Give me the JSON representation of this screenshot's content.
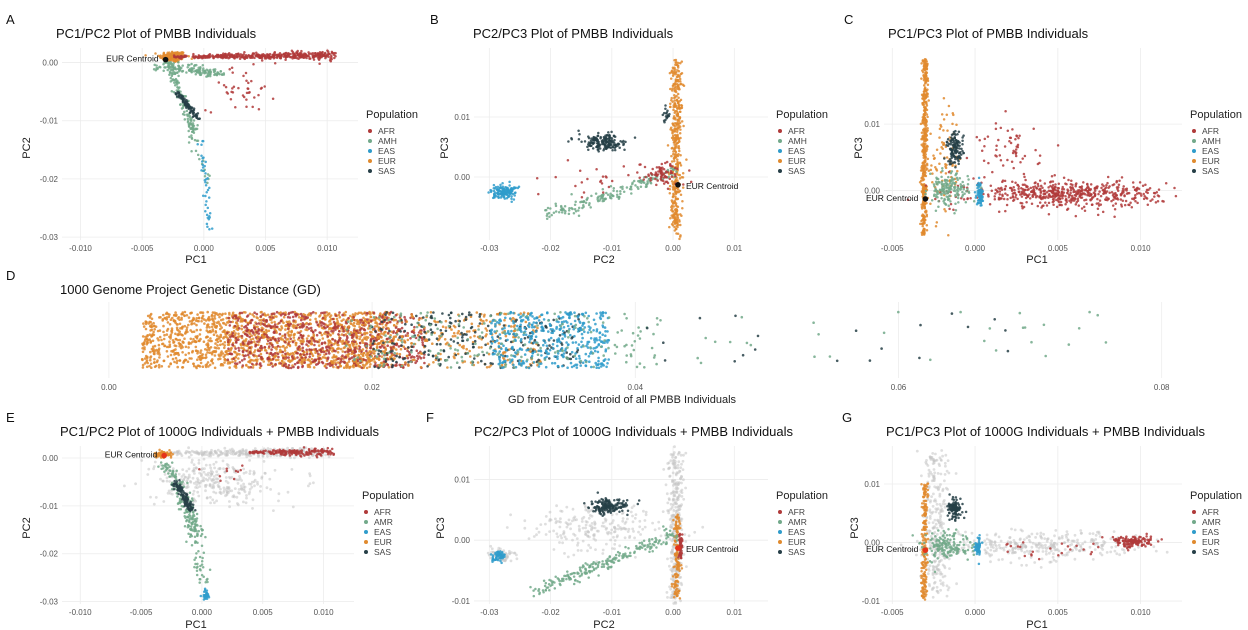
{
  "colors": {
    "AFR": "#b03a3a",
    "AMR": "#72a98a",
    "EAS": "#2f9ccb",
    "EUR": "#e08a2e",
    "SAS": "#263f47",
    "ref": "#c4c4c4",
    "centroid": "#111111",
    "centroid_combined": "#e5331b"
  },
  "chart_data": [
    {
      "id": "A",
      "letter": "A",
      "type": "scatter",
      "title": "PC1/PC2 Plot of PMBB Individuals",
      "xlabel": "PC1",
      "ylabel": "PC2",
      "xlim": [
        -0.0115,
        0.0125
      ],
      "ylim": [
        -0.0305,
        0.0025
      ],
      "xticks": [
        -0.01,
        -0.005,
        0.0,
        0.005,
        0.01
      ],
      "xtick_labels": [
        "-0.010",
        "-0.005",
        "0.000",
        "0.005",
        "0.010"
      ],
      "yticks": [
        0.0,
        -0.01,
        -0.02,
        -0.03
      ],
      "ytick_labels": [
        "0.00",
        "-0.01",
        "-0.02",
        "-0.03"
      ],
      "legend": {
        "title": "Population",
        "entries": [
          "AFR",
          "AMH",
          "EAS",
          "EUR",
          "SAS"
        ]
      },
      "centroid": {
        "label": "EUR Centroid",
        "x": -0.0031,
        "y": 0.0005
      },
      "reference": false,
      "clusters": [
        {
          "pop": "EUR",
          "n": 170,
          "shape": "ellipse",
          "cx": -0.0025,
          "cy": 0.001,
          "rx": 0.001,
          "ry": 0.0009
        },
        {
          "pop": "AFR",
          "n": 440,
          "shape": "wedge",
          "x0": -0.0025,
          "y0": 0.001,
          "x1": 0.0105,
          "y1": 0.0012,
          "w0": 0.0002,
          "w1": 0.0008
        },
        {
          "pop": "AFR",
          "n": 40,
          "shape": "ellipse",
          "cx": 0.003,
          "cy": -0.0045,
          "rx": 0.0025,
          "ry": 0.0035
        },
        {
          "pop": "AMR",
          "n": 150,
          "shape": "line",
          "x0": -0.0035,
          "y0": -0.0005,
          "x1": 0.0015,
          "y1": -0.002,
          "w": 0.0008
        },
        {
          "pop": "AMR",
          "n": 110,
          "shape": "line",
          "x0": -0.0028,
          "y0": 0.0,
          "x1": -0.0008,
          "y1": -0.012,
          "w": 0.0004
        },
        {
          "pop": "SAS",
          "n": 100,
          "shape": "line",
          "x0": -0.0022,
          "y0": -0.005,
          "x1": -0.0005,
          "y1": -0.0095,
          "w": 0.00028
        },
        {
          "pop": "AMR",
          "n": 30,
          "shape": "line",
          "x0": -0.001,
          "y0": -0.011,
          "x1": 0.0003,
          "y1": -0.021,
          "w": 0.0005
        },
        {
          "pop": "EAS",
          "n": 40,
          "shape": "line",
          "x0": -0.0002,
          "y0": -0.013,
          "x1": 0.0005,
          "y1": -0.029,
          "w": 0.00025
        }
      ]
    },
    {
      "id": "B",
      "letter": "B",
      "type": "scatter",
      "title": "PC2/PC3 Plot of PMBB Individuals",
      "xlabel": "PC2",
      "ylabel": "PC3",
      "xlim": [
        -0.0325,
        0.0155
      ],
      "ylim": [
        -0.0105,
        0.0215
      ],
      "xticks": [
        -0.03,
        -0.02,
        -0.01,
        0.0,
        0.01
      ],
      "xtick_labels": [
        "-0.03",
        "-0.02",
        "-0.01",
        "0.00",
        "0.01"
      ],
      "yticks": [
        0.01,
        0.0
      ],
      "ytick_labels": [
        "0.01",
        "0.00"
      ],
      "legend": {
        "title": "Population",
        "entries": [
          "AFR",
          "AMH",
          "EAS",
          "EUR",
          "SAS"
        ]
      },
      "centroid": {
        "label": "EUR Centroid",
        "x": 0.0008,
        "y": -0.0013
      },
      "reference": false,
      "clusters": [
        {
          "pop": "EUR",
          "n": 420,
          "shape": "line",
          "x0": 0.0004,
          "y0": -0.0098,
          "x1": 0.0006,
          "y1": 0.0195,
          "w": 0.0009
        },
        {
          "pop": "SAS",
          "n": 170,
          "shape": "ellipse",
          "cx": -0.0115,
          "cy": 0.0058,
          "rx": 0.0035,
          "ry": 0.0012
        },
        {
          "pop": "SAS",
          "n": 20,
          "shape": "ellipse",
          "cx": -0.001,
          "cy": 0.0105,
          "rx": 0.0005,
          "ry": 0.0013
        },
        {
          "pop": "EAS",
          "n": 150,
          "shape": "ellipse",
          "cx": -0.0275,
          "cy": -0.0025,
          "rx": 0.0018,
          "ry": 0.0011
        },
        {
          "pop": "AMR",
          "n": 170,
          "shape": "line",
          "x0": -0.021,
          "y0": -0.0065,
          "x1": 0.0005,
          "y1": 0.001,
          "w": 0.0011
        },
        {
          "pop": "AFR",
          "n": 80,
          "shape": "ellipse",
          "cx": -0.0015,
          "cy": 0.0005,
          "rx": 0.0032,
          "ry": 0.0018
        },
        {
          "pop": "AFR",
          "n": 25,
          "shape": "ellipse",
          "cx": -0.012,
          "cy": -0.0005,
          "rx": 0.006,
          "ry": 0.0025
        }
      ]
    },
    {
      "id": "C",
      "letter": "C",
      "type": "scatter",
      "title": "PC1/PC3 Plot of PMBB Individuals",
      "xlabel": "PC1",
      "ylabel": "PC3",
      "xlim": [
        -0.0055,
        0.0125
      ],
      "ylim": [
        -0.0075,
        0.0215
      ],
      "xticks": [
        -0.005,
        0.0,
        0.005,
        0.01
      ],
      "xtick_labels": [
        "-0.005",
        "0.000",
        "0.005",
        "0.010"
      ],
      "yticks": [
        0.01,
        0.0
      ],
      "ytick_labels": [
        "0.01",
        "0.00"
      ],
      "legend": {
        "title": "Population",
        "entries": [
          "AFR",
          "AMH",
          "EAS",
          "EUR",
          "SAS"
        ]
      },
      "centroid": {
        "label": "EUR Centroid",
        "x": -0.003,
        "y": -0.0013
      },
      "reference": false,
      "clusters": [
        {
          "pop": "EUR",
          "n": 420,
          "shape": "line",
          "x0": -0.0031,
          "y0": -0.0068,
          "x1": -0.003,
          "y1": 0.0198,
          "w": 0.00018
        },
        {
          "pop": "EUR",
          "n": 90,
          "shape": "ellipse",
          "cx": -0.0018,
          "cy": 0.004,
          "rx": 0.0009,
          "ry": 0.0075
        },
        {
          "pop": "AFR",
          "n": 560,
          "shape": "ellipse",
          "cx": 0.0055,
          "cy": -0.0005,
          "rx": 0.0052,
          "ry": 0.0018
        },
        {
          "pop": "AFR",
          "n": 60,
          "shape": "ellipse",
          "cx": 0.002,
          "cy": 0.006,
          "rx": 0.0018,
          "ry": 0.004
        },
        {
          "pop": "SAS",
          "n": 120,
          "shape": "ellipse",
          "cx": -0.0012,
          "cy": 0.0063,
          "rx": 0.00045,
          "ry": 0.0022
        },
        {
          "pop": "AMR",
          "n": 160,
          "shape": "ellipse",
          "cx": -0.0016,
          "cy": 0.0,
          "rx": 0.0011,
          "ry": 0.0022
        },
        {
          "pop": "EAS",
          "n": 70,
          "shape": "ellipse",
          "cx": 0.0003,
          "cy": -0.0005,
          "rx": 0.00018,
          "ry": 0.0016
        }
      ]
    },
    {
      "id": "D",
      "letter": "D",
      "type": "strip",
      "title": "1000 Genome Project Genetic Distance (GD)",
      "xlabel": "GD from EUR Centroid of all PMBB Individuals",
      "xlim": [
        -0.0025,
        0.082
      ],
      "xticks": [
        0.0,
        0.02,
        0.04,
        0.06,
        0.08
      ],
      "xtick_labels": [
        "0.00",
        "0.02",
        "0.04",
        "0.06",
        "0.08"
      ],
      "bands": [
        {
          "pop": "EUR",
          "n": 1500,
          "from": 0.0025,
          "to": 0.022
        },
        {
          "pop": "AFR",
          "n": 650,
          "from": 0.009,
          "to": 0.024
        },
        {
          "pop": "EUR",
          "n": 350,
          "from": 0.018,
          "to": 0.033
        },
        {
          "pop": "SAS",
          "n": 240,
          "from": 0.02,
          "to": 0.036
        },
        {
          "pop": "EAS",
          "n": 420,
          "from": 0.029,
          "to": 0.038
        },
        {
          "pop": "AMR",
          "n": 200,
          "from": 0.018,
          "to": 0.042
        },
        {
          "pop": "AMR",
          "n": 30,
          "from": 0.042,
          "to": 0.077
        },
        {
          "pop": "SAS",
          "n": 20,
          "from": 0.038,
          "to": 0.07
        }
      ]
    },
    {
      "id": "E",
      "letter": "E",
      "type": "scatter",
      "title": "PC1/PC2 Plot of 1000G Individuals + PMBB Individuals",
      "xlabel": "PC1",
      "ylabel": "PC2",
      "xlim": [
        -0.0115,
        0.0125
      ],
      "ylim": [
        -0.0305,
        0.0025
      ],
      "xticks": [
        -0.01,
        -0.005,
        0.0,
        0.005,
        0.01
      ],
      "xtick_labels": [
        "-0.010",
        "-0.005",
        "0.000",
        "0.005",
        "0.010"
      ],
      "yticks": [
        0.0,
        -0.01,
        -0.02,
        -0.03
      ],
      "ytick_labels": [
        "0.00",
        "-0.01",
        "-0.02",
        "-0.03"
      ],
      "legend": {
        "title": "Population",
        "entries": [
          "AFR",
          "AMR",
          "EAS",
          "EUR",
          "SAS"
        ]
      },
      "centroid": {
        "label": "EUR Centroid",
        "x": -0.0031,
        "y": 0.0005
      },
      "reference": true,
      "clusters": [
        {
          "pop": "ref",
          "n": 260,
          "shape": "wedge",
          "x0": -0.003,
          "y0": 0.001,
          "x1": 0.0102,
          "y1": 0.0012,
          "w0": 0.0004,
          "w1": 0.0012
        },
        {
          "pop": "ref",
          "n": 300,
          "shape": "ellipse",
          "cx": 0.001,
          "cy": -0.005,
          "rx": 0.0045,
          "ry": 0.0045
        },
        {
          "pop": "AFR",
          "n": 180,
          "shape": "wedge",
          "x0": 0.004,
          "y0": 0.0012,
          "x1": 0.0105,
          "y1": 0.0012,
          "w0": 0.0003,
          "w1": 0.0009
        },
        {
          "pop": "EUR",
          "n": 90,
          "shape": "ellipse",
          "cx": -0.0032,
          "cy": 0.0007,
          "rx": 0.0006,
          "ry": 0.0006
        },
        {
          "pop": "AMR",
          "n": 170,
          "shape": "line",
          "x0": -0.003,
          "y0": -0.0005,
          "x1": -0.0002,
          "y1": -0.016,
          "w": 0.0006
        },
        {
          "pop": "SAS",
          "n": 110,
          "shape": "line",
          "x0": -0.0022,
          "y0": -0.005,
          "x1": -0.0008,
          "y1": -0.011,
          "w": 0.00035
        },
        {
          "pop": "AMR",
          "n": 60,
          "shape": "line",
          "x0": -0.001,
          "y0": -0.012,
          "x1": 0.0002,
          "y1": -0.026,
          "w": 0.0007
        },
        {
          "pop": "EAS",
          "n": 30,
          "shape": "ellipse",
          "cx": 0.0003,
          "cy": -0.0285,
          "rx": 0.00025,
          "ry": 0.0012
        },
        {
          "pop": "AFR",
          "n": 10,
          "shape": "ellipse",
          "cx": 0.0025,
          "cy": -0.003,
          "rx": 0.002,
          "ry": 0.002
        }
      ]
    },
    {
      "id": "F",
      "letter": "F",
      "type": "scatter",
      "title": "PC2/PC3 Plot of 1000G Individuals + PMBB Individuals",
      "xlabel": "PC2",
      "ylabel": "PC3",
      "xlim": [
        -0.0325,
        0.0155
      ],
      "ylim": [
        -0.0105,
        0.0155
      ],
      "xticks": [
        -0.03,
        -0.02,
        -0.01,
        0.0,
        0.01
      ],
      "xtick_labels": [
        "-0.03",
        "-0.02",
        "-0.01",
        "0.00",
        "0.01"
      ],
      "yticks": [
        0.01,
        0.0,
        -0.01
      ],
      "ytick_labels": [
        "0.01",
        "0.00",
        "-0.01"
      ],
      "legend": {
        "title": "Population",
        "entries": [
          "AFR",
          "AMR",
          "EAS",
          "EUR",
          "SAS"
        ]
      },
      "centroid": {
        "label": "EUR Centroid",
        "x": 0.0008,
        "y": -0.0013
      },
      "reference": true,
      "clusters": [
        {
          "pop": "ref",
          "n": 320,
          "shape": "line",
          "x0": 0.0005,
          "y0": -0.01,
          "x1": 0.0005,
          "y1": 0.0145,
          "w": 0.0013
        },
        {
          "pop": "ref",
          "n": 220,
          "shape": "ellipse",
          "cx": -0.012,
          "cy": 0.002,
          "rx": 0.01,
          "ry": 0.0035
        },
        {
          "pop": "ref",
          "n": 60,
          "shape": "ellipse",
          "cx": -0.028,
          "cy": -0.0025,
          "rx": 0.002,
          "ry": 0.0012
        },
        {
          "pop": "EUR",
          "n": 130,
          "shape": "line",
          "x0": 0.0005,
          "y0": -0.0095,
          "x1": 0.0006,
          "y1": 0.004,
          "w": 0.0006
        },
        {
          "pop": "AFR",
          "n": 50,
          "shape": "line",
          "x0": 0.0012,
          "y0": -0.003,
          "x1": 0.0012,
          "y1": 0.001,
          "w": 0.0003
        },
        {
          "pop": "SAS",
          "n": 160,
          "shape": "ellipse",
          "cx": -0.0105,
          "cy": 0.0055,
          "rx": 0.0028,
          "ry": 0.0011
        },
        {
          "pop": "AMR",
          "n": 220,
          "shape": "line",
          "x0": -0.0225,
          "y0": -0.0085,
          "x1": 0.0005,
          "y1": 0.0012,
          "w": 0.0011
        },
        {
          "pop": "EAS",
          "n": 60,
          "shape": "ellipse",
          "cx": -0.0285,
          "cy": -0.0027,
          "rx": 0.0009,
          "ry": 0.0008
        }
      ]
    },
    {
      "id": "G",
      "letter": "G",
      "type": "scatter",
      "title": "PC1/PC3 Plot of 1000G Individuals + PMBB Individuals",
      "xlabel": "PC1",
      "ylabel": "PC3",
      "xlim": [
        -0.0055,
        0.0125
      ],
      "ylim": [
        -0.0105,
        0.0165
      ],
      "xticks": [
        -0.005,
        0.0,
        0.005,
        0.01
      ],
      "xtick_labels": [
        "-0.005",
        "0.000",
        "0.005",
        "0.010"
      ],
      "yticks": [
        0.01,
        0.0,
        -0.01
      ],
      "ytick_labels": [
        "0.01",
        "0.00",
        "-0.01"
      ],
      "legend": {
        "title": "Population",
        "entries": [
          "AFR",
          "AMR",
          "EAS",
          "EUR",
          "SAS"
        ]
      },
      "centroid": {
        "label": "EUR Centroid",
        "x": -0.003,
        "y": -0.0013
      },
      "reference": true,
      "clusters": [
        {
          "pop": "ref",
          "n": 260,
          "shape": "line",
          "x0": -0.0022,
          "y0": -0.009,
          "x1": -0.0025,
          "y1": 0.016,
          "w": 0.0008
        },
        {
          "pop": "ref",
          "n": 320,
          "shape": "ellipse",
          "cx": 0.004,
          "cy": -0.0005,
          "rx": 0.0055,
          "ry": 0.0022
        },
        {
          "pop": "EUR",
          "n": 200,
          "shape": "line",
          "x0": -0.0031,
          "y0": -0.01,
          "x1": -0.003,
          "y1": 0.01,
          "w": 0.00018
        },
        {
          "pop": "AFR",
          "n": 130,
          "shape": "ellipse",
          "cx": 0.0095,
          "cy": 0.0002,
          "rx": 0.0011,
          "ry": 0.0009
        },
        {
          "pop": "AFR",
          "n": 25,
          "shape": "ellipse",
          "cx": 0.005,
          "cy": -0.001,
          "rx": 0.0035,
          "ry": 0.0012
        },
        {
          "pop": "SAS",
          "n": 110,
          "shape": "ellipse",
          "cx": -0.0012,
          "cy": 0.0058,
          "rx": 0.0004,
          "ry": 0.0015
        },
        {
          "pop": "AMR",
          "n": 160,
          "shape": "ellipse",
          "cx": -0.0017,
          "cy": -0.0005,
          "rx": 0.0012,
          "ry": 0.0022
        },
        {
          "pop": "EAS",
          "n": 60,
          "shape": "ellipse",
          "cx": 0.0002,
          "cy": -0.0008,
          "rx": 0.00015,
          "ry": 0.0013
        }
      ]
    }
  ]
}
